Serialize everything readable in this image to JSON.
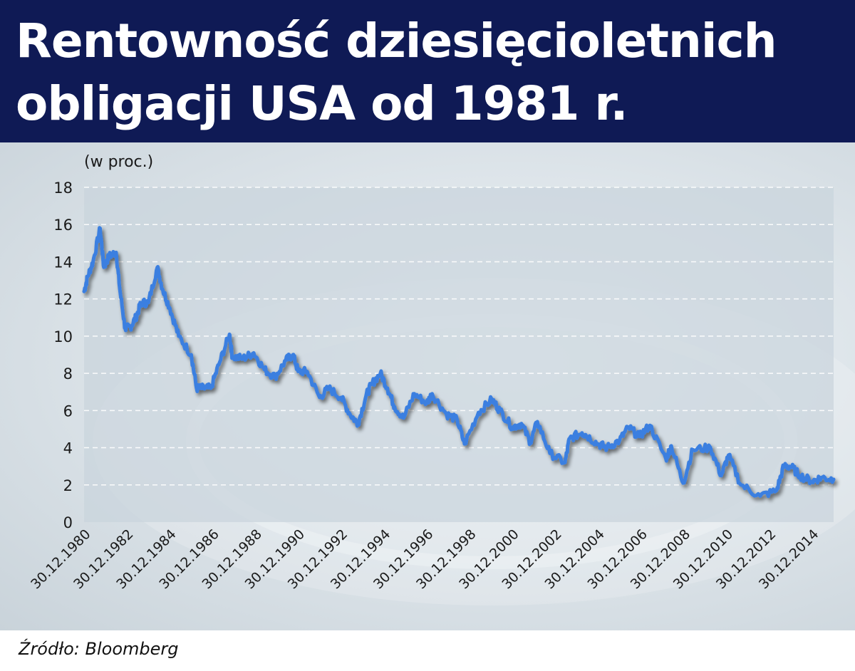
{
  "header": {
    "title": "Rentowność dziesięcioletnich\nobligacji USA od 1981 r."
  },
  "source": "Źródło: Bloomberg",
  "colors": {
    "header_bg": "#0f1a55",
    "line": "#3b7fe0",
    "plot_bg": "#c9d4dc",
    "grid": "#ffffff"
  },
  "chart_data": {
    "type": "line",
    "title": "Rentowność dziesięcioletnich obligacji USA od 1981 r.",
    "ylabel": "(w proc.)",
    "xlabel": "",
    "ylim": [
      0,
      18
    ],
    "xlim": [
      "1980-12-30",
      "2015-12-30"
    ],
    "yticks": [
      0,
      2,
      4,
      6,
      8,
      10,
      12,
      14,
      16,
      18
    ],
    "xtick_labels": [
      "30.12.1980",
      "30.12.1982",
      "30.12.1984",
      "30.12.1986",
      "30.12.1988",
      "30.12.1990",
      "30.12.1992",
      "30.12.1994",
      "30.12.1996",
      "30.12.1998",
      "30.12.2000",
      "30.12.2002",
      "30.12.2004",
      "30.12.2006",
      "30.12.2008",
      "30.12.2010",
      "30.12.2012",
      "30.12.2014"
    ],
    "grid": "horizontal dashed",
    "legend": "none",
    "series": [
      {
        "x": [
          "1980-12-30",
          "1981-03-01",
          "1981-06-01",
          "1981-09-30",
          "1981-12-01",
          "1982-03-01",
          "1982-06-30",
          "1982-09-01",
          "1982-12-01",
          "1983-03-01",
          "1983-06-01",
          "1983-09-01",
          "1984-01-01",
          "1984-06-01",
          "1984-09-01",
          "1985-01-01",
          "1985-06-01",
          "1986-01-01",
          "1986-04-01",
          "1986-08-01",
          "1986-12-01",
          "1987-05-01",
          "1987-10-15",
          "1987-12-01",
          "1988-06-01",
          "1988-12-01",
          "1989-06-01",
          "1989-12-01",
          "1990-06-01",
          "1990-09-30",
          "1990-12-30",
          "1991-06-01",
          "1991-12-30",
          "1992-06-01",
          "1992-12-30",
          "1993-06-01",
          "1993-10-15",
          "1994-03-01",
          "1994-06-01",
          "1994-11-01",
          "1995-03-01",
          "1995-07-01",
          "1995-12-01",
          "1996-06-01",
          "1996-12-30",
          "1997-04-01",
          "1997-12-01",
          "1998-06-01",
          "1998-10-05",
          "1999-06-01",
          "2000-01-15",
          "2000-06-01",
          "2000-12-30",
          "2001-06-01",
          "2001-11-01",
          "2002-03-01",
          "2002-10-01",
          "2003-06-15",
          "2003-09-01",
          "2004-04-01",
          "2004-06-01",
          "2005-01-01",
          "2005-06-01",
          "2006-01-01",
          "2006-06-01",
          "2006-12-01",
          "2007-06-01",
          "2008-03-01",
          "2008-06-01",
          "2008-12-20",
          "2009-06-01",
          "2010-04-01",
          "2010-10-01",
          "2011-02-01",
          "2011-09-01",
          "2012-07-25",
          "2013-05-01",
          "2013-09-01",
          "2013-12-30",
          "2014-06-01",
          "2014-12-30",
          "2015-06-01",
          "2015-12-30"
        ],
        "values": [
          12.4,
          13.2,
          14.0,
          15.8,
          13.7,
          14.3,
          14.5,
          12.5,
          10.4,
          10.5,
          11.0,
          11.8,
          11.8,
          13.7,
          12.5,
          11.5,
          10.0,
          9.0,
          7.2,
          7.2,
          7.2,
          8.6,
          10.1,
          8.9,
          8.8,
          9.1,
          8.2,
          7.8,
          8.7,
          9.0,
          8.1,
          8.1,
          6.7,
          7.2,
          6.7,
          5.8,
          5.3,
          6.8,
          7.4,
          8.0,
          7.2,
          6.2,
          5.6,
          6.9,
          6.4,
          6.9,
          5.8,
          5.5,
          4.2,
          5.9,
          6.6,
          6.0,
          5.1,
          5.3,
          4.3,
          5.4,
          3.7,
          3.2,
          4.5,
          4.8,
          4.7,
          4.2,
          4.0,
          4.4,
          5.1,
          4.6,
          5.2,
          3.4,
          4.1,
          2.1,
          3.9,
          4.0,
          2.5,
          3.6,
          2.0,
          1.4,
          1.7,
          3.0,
          3.0,
          2.5,
          2.2,
          2.4,
          2.3
        ]
      }
    ]
  }
}
